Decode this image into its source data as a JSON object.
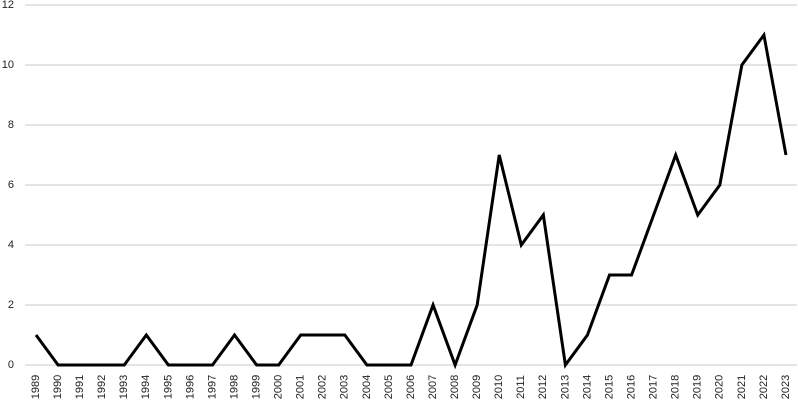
{
  "chart_data": {
    "type": "line",
    "categories": [
      "1989",
      "1990",
      "1991",
      "1992",
      "1993",
      "1994",
      "1995",
      "1996",
      "1997",
      "1998",
      "1999",
      "2000",
      "2001",
      "2002",
      "2003",
      "2004",
      "2005",
      "2006",
      "2007",
      "2008",
      "2009",
      "2010",
      "2011",
      "2012",
      "2013",
      "2014",
      "2015",
      "2016",
      "2017",
      "2018",
      "2019",
      "2020",
      "2021",
      "2022",
      "2023"
    ],
    "values": [
      1,
      0,
      0,
      0,
      0,
      1,
      0,
      0,
      0,
      1,
      0,
      0,
      1,
      1,
      1,
      0,
      0,
      0,
      2,
      0,
      2,
      7,
      4,
      5,
      0,
      1,
      3,
      3,
      5,
      7,
      5,
      6,
      10,
      11,
      7
    ],
    "color": "#000000",
    "ylim": [
      0,
      12
    ],
    "yticks": [
      0,
      2,
      4,
      6,
      8,
      10,
      12
    ],
    "grid": true
  }
}
